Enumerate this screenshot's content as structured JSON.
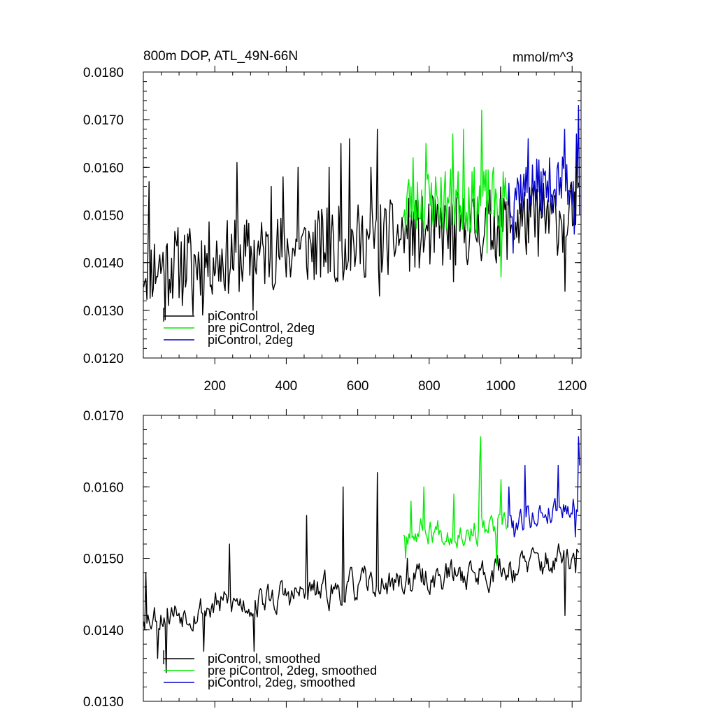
{
  "chart_data": [
    {
      "type": "line",
      "title": "800m DOP, ATL_49N-66N",
      "units": "mmol/m^3",
      "xlabel": "",
      "ylabel": "",
      "xlim": [
        0,
        1225
      ],
      "ylim": [
        0.012,
        0.018
      ],
      "xticks": [
        200,
        400,
        600,
        800,
        1000,
        1200
      ],
      "xtick_labels": [
        "200",
        "400",
        "600",
        "800",
        "1000",
        "1200"
      ],
      "yticks": [
        0.012,
        0.013,
        0.014,
        0.015,
        0.016,
        0.017,
        0.018
      ],
      "ytick_labels": [
        "0.0120",
        "0.0130",
        "0.0140",
        "0.0150",
        "0.0160",
        "0.0170",
        "0.0180"
      ],
      "legend": "bottom-left",
      "series": [
        {
          "name": "piControl",
          "color": "#000000",
          "x_range": [
            1,
            1220
          ],
          "start": 0.0139,
          "end": 0.015,
          "noise": 0.0008,
          "seed": 11,
          "keypoints": [
            [
              5,
              0.0136
            ],
            [
              15,
              0.0157
            ],
            [
              62,
              0.0128
            ],
            [
              70,
              0.0131
            ],
            [
              110,
              0.0131
            ],
            [
              140,
              0.0129
            ],
            [
              166,
              0.0129
            ],
            [
              262,
              0.0161
            ],
            [
              308,
              0.013
            ],
            [
              358,
              0.0156
            ],
            [
              392,
              0.0158
            ],
            [
              432,
              0.016
            ],
            [
              520,
              0.016
            ],
            [
              537,
              0.0136
            ],
            [
              552,
              0.0165
            ],
            [
              578,
              0.0166
            ],
            [
              636,
              0.016
            ],
            [
              656,
              0.0168
            ],
            [
              662,
              0.0133
            ],
            [
              740,
              0.0145
            ],
            [
              868,
              0.0136
            ],
            [
              1180,
              0.0134
            ],
            [
              1190,
              0.0148
            ],
            [
              1212,
              0.0165
            ]
          ]
        },
        {
          "name": "pre piControl, 2deg",
          "color": "#00ee00",
          "x_range": [
            728,
            1018
          ],
          "start": 0.0153,
          "end": 0.0153,
          "noise": 0.0007,
          "seed": 23,
          "keypoints": [
            [
              735,
              0.0146
            ],
            [
              755,
              0.0162
            ],
            [
              790,
              0.0165
            ],
            [
              866,
              0.0167
            ],
            [
              895,
              0.0168
            ],
            [
              948,
              0.0172
            ],
            [
              963,
              0.0142
            ],
            [
              1000,
              0.0137
            ]
          ]
        },
        {
          "name": "piControl, 2deg",
          "color": "#0000cc",
          "x_range": [
            1020,
            1222
          ],
          "start": 0.0155,
          "end": 0.0157,
          "noise": 0.0006,
          "seed": 37,
          "keypoints": [
            [
              1035,
              0.0142
            ],
            [
              1078,
              0.0166
            ],
            [
              1178,
              0.0168
            ],
            [
              1205,
              0.0146
            ],
            [
              1213,
              0.0167
            ],
            [
              1217,
              0.0173
            ],
            [
              1220,
              0.015
            ]
          ]
        }
      ]
    },
    {
      "type": "line",
      "title": "",
      "xlabel": "",
      "ylabel": "",
      "xlim": [
        0,
        1225
      ],
      "ylim": [
        0.013,
        0.017
      ],
      "yticks": [
        0.013,
        0.014,
        0.015,
        0.016,
        0.017
      ],
      "ytick_labels": [
        "0.0130",
        "0.0140",
        "0.0150",
        "0.0160",
        "0.0170"
      ],
      "legend": "bottom-left",
      "series": [
        {
          "name": "piControl, smoothed",
          "color": "#000000",
          "x_range": [
            1,
            1220
          ],
          "start": 0.0142,
          "end": 0.015,
          "noise": 0.00045,
          "seed": 53,
          "keypoints": [
            [
              8,
              0.0148
            ],
            [
              40,
              0.0136
            ],
            [
              65,
              0.0134
            ],
            [
              170,
              0.0137
            ],
            [
              240,
              0.0152
            ],
            [
              310,
              0.0137
            ],
            [
              458,
              0.0156
            ],
            [
              558,
              0.016
            ],
            [
              656,
              0.0162
            ],
            [
              740,
              0.015
            ],
            [
              1180,
              0.0142
            ],
            [
              1210,
              0.0148
            ]
          ]
        },
        {
          "name": "pre piControl, 2deg, smoothed",
          "color": "#00ee00",
          "x_range": [
            728,
            1018
          ],
          "start": 0.0154,
          "end": 0.0154,
          "noise": 0.0004,
          "seed": 67,
          "keypoints": [
            [
              735,
              0.015
            ],
            [
              748,
              0.0158
            ],
            [
              785,
              0.016
            ],
            [
              870,
              0.0159
            ],
            [
              940,
              0.0163
            ],
            [
              945,
              0.0167
            ],
            [
              990,
              0.0149
            ],
            [
              1000,
              0.0161
            ]
          ]
        },
        {
          "name": "piControl, 2deg, smoothed",
          "color": "#0000cc",
          "x_range": [
            1020,
            1222
          ],
          "start": 0.0155,
          "end": 0.0158,
          "noise": 0.0004,
          "seed": 79,
          "keypoints": [
            [
              1023,
              0.016
            ],
            [
              1038,
              0.0153
            ],
            [
              1068,
              0.0163
            ],
            [
              1160,
              0.0163
            ],
            [
              1210,
              0.0153
            ],
            [
              1218,
              0.0167
            ],
            [
              1220,
              0.0163
            ]
          ]
        }
      ]
    }
  ]
}
